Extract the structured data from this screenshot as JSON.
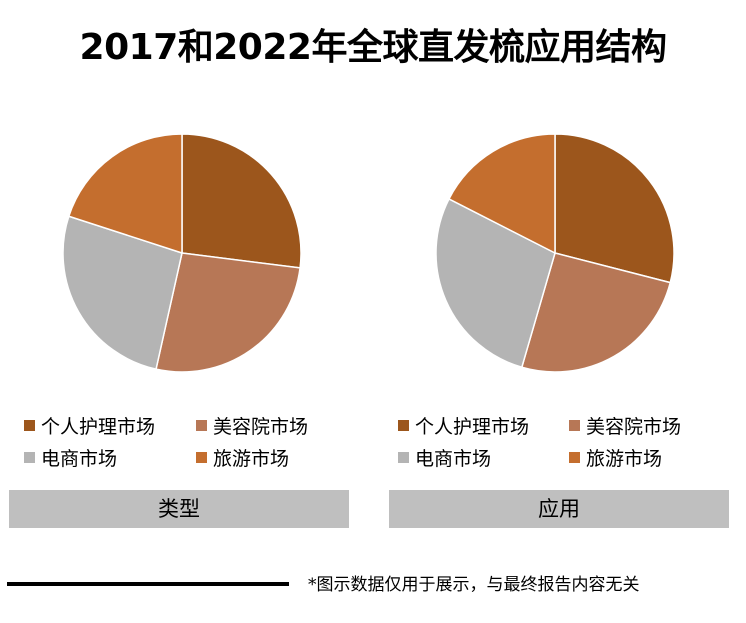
{
  "title": "2017和2022年全球直发梳应用结构",
  "colors": {
    "personal_care": "#9C561C",
    "beauty_salon": "#B77756",
    "ecommerce": "#B4B4B4",
    "travel": "#C46E2E",
    "label_bar": "#BFBFBF"
  },
  "legend": {
    "items": [
      {
        "label": "个人护理市场",
        "color": "#9C561C"
      },
      {
        "label": "美容院市场",
        "color": "#B77756"
      },
      {
        "label": "电商市场",
        "color": "#B4B4B4"
      },
      {
        "label": "旅游市场",
        "color": "#C46E2E"
      }
    ]
  },
  "panels": [
    {
      "label": "类型"
    },
    {
      "label": "应用"
    }
  ],
  "footnote": "*图示数据仅用于展示，与最终报告内容无关",
  "chart_data": [
    {
      "type": "pie",
      "title": "类型",
      "categories": [
        "个人护理市场",
        "美容院市场",
        "电商市场",
        "旅游市场"
      ],
      "values": [
        27,
        26.5,
        26.5,
        20
      ],
      "colors": [
        "#9C561C",
        "#B77756",
        "#B4B4B4",
        "#C46E2E"
      ],
      "legend_position": "bottom"
    },
    {
      "type": "pie",
      "title": "应用",
      "categories": [
        "个人护理市场",
        "美容院市场",
        "电商市场",
        "旅游市场"
      ],
      "values": [
        29,
        25.5,
        28,
        17.5
      ],
      "colors": [
        "#9C561C",
        "#B77756",
        "#B4B4B4",
        "#C46E2E"
      ],
      "legend_position": "bottom"
    }
  ]
}
